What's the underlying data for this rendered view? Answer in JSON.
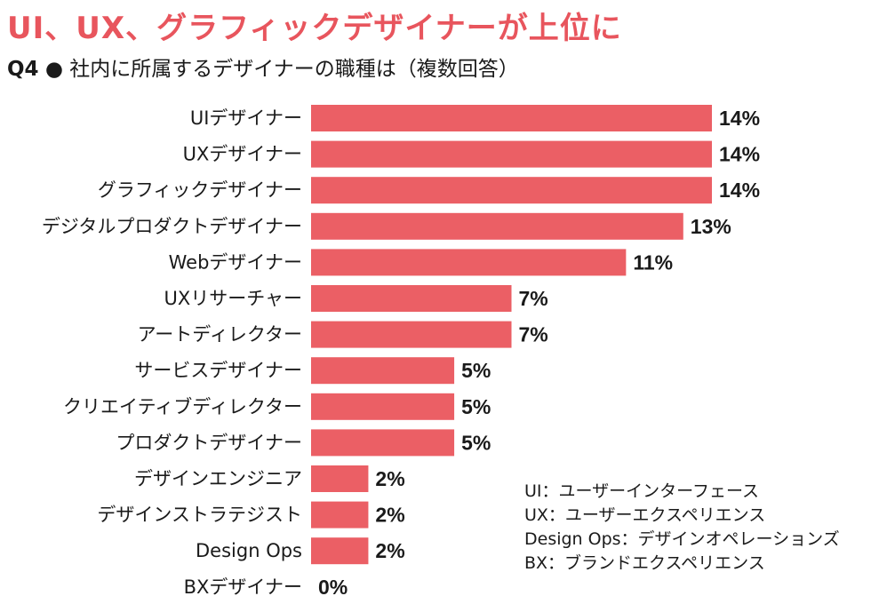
{
  "header": {
    "title": "UI、UX、グラフィックデザイナーが上位に",
    "question_number": "Q4",
    "bullet": "●",
    "question": "社内に所属するデザイナーの職種は（複数回答）"
  },
  "colors": {
    "accent": "#e8555d",
    "bar": "#eb5f65"
  },
  "chart_data": {
    "type": "bar",
    "orientation": "horizontal",
    "categories": [
      "UIデザイナー",
      "UXデザイナー",
      "グラフィックデザイナー",
      "デジタルプロダクトデザイナー",
      "Webデザイナー",
      "UXリサーチャー",
      "アートディレクター",
      "サービスデザイナー",
      "クリエイティブディレクター",
      "プロダクトデザイナー",
      "デザインエンジニア",
      "デザインストラテジスト",
      "Design Ops",
      "BXデザイナー"
    ],
    "values": [
      14,
      14,
      14,
      13,
      11,
      7,
      7,
      5,
      5,
      5,
      2,
      2,
      2,
      0
    ],
    "value_labels": [
      "14%",
      "14%",
      "14%",
      "13%",
      "11%",
      "7%",
      "7%",
      "5%",
      "5%",
      "5%",
      "2%",
      "2%",
      "2%",
      "0%"
    ],
    "unit": "%",
    "xlim": [
      0,
      14
    ],
    "grid": false,
    "legend": "none"
  },
  "notes": [
    "UI：ユーザーインターフェース",
    "UX：ユーザーエクスペリエンス",
    "Design Ops：デザインオペレーションズ",
    "BX：ブランドエクスペリエンス"
  ]
}
